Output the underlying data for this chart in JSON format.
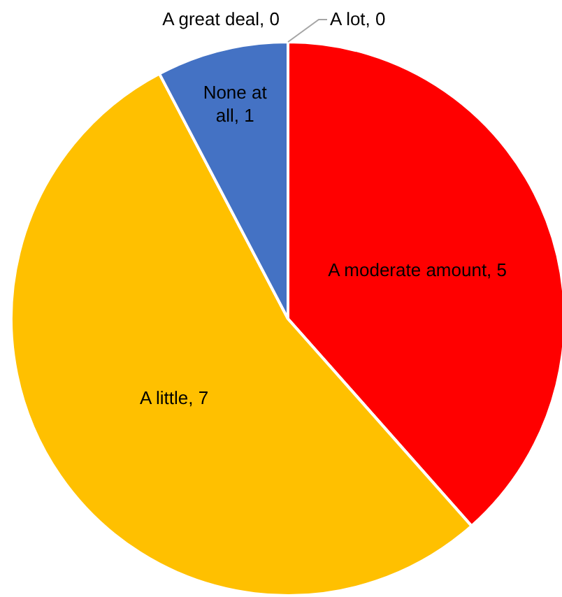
{
  "chart_data": {
    "type": "pie",
    "categories": [
      "A great deal",
      "A lot",
      "A moderate amount",
      "A little",
      "None at all"
    ],
    "values": [
      0,
      0,
      5,
      7,
      1
    ],
    "colors": [
      "#5b9bd5",
      "#a5a5a5",
      "#ff0000",
      "#ffc000",
      "#4472c4"
    ],
    "value_labels": [
      ", 0",
      ", 0",
      ", 5",
      ", 7",
      ", 1"
    ]
  }
}
